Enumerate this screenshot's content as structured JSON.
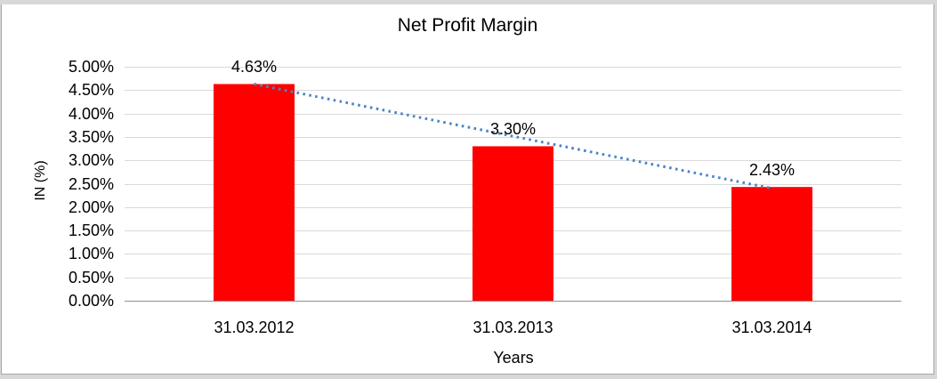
{
  "window": {
    "background_color": "#d8d8d8",
    "frame_border_color": "#a6a6a6",
    "frame_background_color": "#ffffff"
  },
  "chart_data": {
    "type": "bar",
    "title": "Net Profit Margin",
    "categories": [
      "31.03.2012",
      "31.03.2013",
      "31.03.2014"
    ],
    "values": [
      4.63,
      3.3,
      2.43
    ],
    "data_labels": [
      "4.63%",
      "3.30%",
      "2.43%"
    ],
    "xlabel": "Years",
    "ylabel": "IN (%)",
    "ylim": [
      0,
      5
    ],
    "y_tick_step": 0.5,
    "y_ticks": [
      "0.00%",
      "0.50%",
      "1.00%",
      "1.50%",
      "2.00%",
      "2.50%",
      "3.00%",
      "3.50%",
      "4.00%",
      "4.50%",
      "5.00%"
    ],
    "grid": true,
    "legend": "none",
    "bar_color": "#fe0000",
    "gridline_color": "#d9d9d9",
    "axis_line_color": "#8e8e8e",
    "trendline": {
      "type": "linear",
      "style": "dotted",
      "color": "#4a86c5",
      "start_value": 4.63,
      "end_value": 2.4
    }
  }
}
